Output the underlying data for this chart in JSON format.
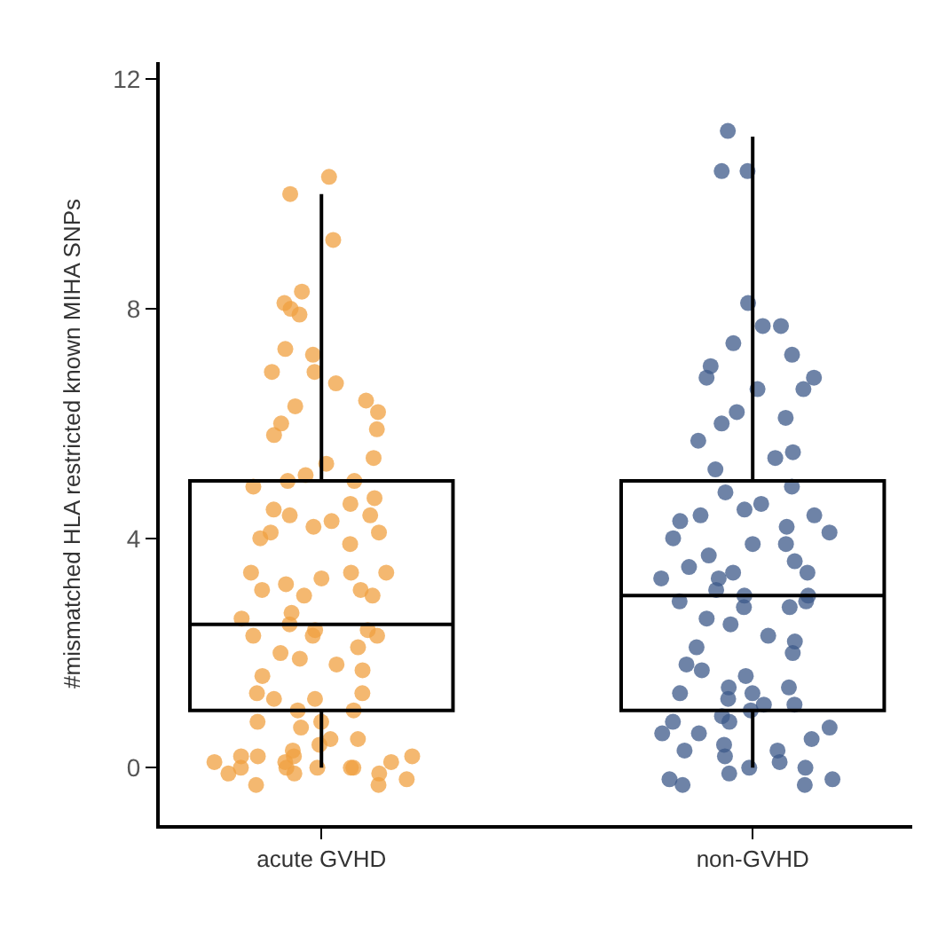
{
  "chart_data": {
    "type": "box",
    "ylabel": "#mismatched HLA restricted known MIHA SNPs",
    "categories": [
      "acute GVHD",
      "non-GVHD"
    ],
    "boxes": [
      {
        "low": 0,
        "q1": 1,
        "median": 2.5,
        "q3": 5,
        "high": 10
      },
      {
        "low": 0,
        "q1": 1,
        "median": 3,
        "q3": 5,
        "high": 11
      }
    ],
    "color": "#000000",
    "ylim": [
      -1,
      12.3
    ],
    "yticks": [
      0,
      4,
      8,
      12
    ],
    "series": [
      {
        "type": "scatter",
        "color": "#f0a040",
        "x": [
          "acute GVHD",
          "acute GVHD",
          "acute GVHD",
          "acute GVHD",
          "acute GVHD",
          "acute GVHD",
          "acute GVHD",
          "acute GVHD",
          "acute GVHD",
          "acute GVHD",
          "acute GVHD",
          "acute GVHD",
          "acute GVHD",
          "acute GVHD",
          "acute GVHD",
          "acute GVHD",
          "acute GVHD",
          "acute GVHD",
          "acute GVHD",
          "acute GVHD",
          "acute GVHD",
          "acute GVHD",
          "acute GVHD",
          "acute GVHD",
          "acute GVHD",
          "acute GVHD",
          "acute GVHD",
          "acute GVHD",
          "acute GVHD",
          "acute GVHD",
          "acute GVHD",
          "acute GVHD",
          "acute GVHD",
          "acute GVHD",
          "acute GVHD",
          "acute GVHD",
          "acute GVHD",
          "acute GVHD",
          "acute GVHD",
          "acute GVHD",
          "acute GVHD",
          "acute GVHD",
          "acute GVHD",
          "acute GVHD",
          "acute GVHD",
          "acute GVHD",
          "acute GVHD",
          "acute GVHD",
          "acute GVHD",
          "acute GVHD",
          "acute GVHD",
          "acute GVHD",
          "acute GVHD",
          "acute GVHD",
          "acute GVHD",
          "acute GVHD",
          "acute GVHD",
          "acute GVHD",
          "acute GVHD",
          "acute GVHD",
          "acute GVHD",
          "acute GVHD",
          "acute GVHD",
          "acute GVHD",
          "acute GVHD",
          "acute GVHD",
          "acute GVHD",
          "acute GVHD",
          "acute GVHD",
          "acute GVHD",
          "acute GVHD",
          "acute GVHD",
          "acute GVHD",
          "acute GVHD",
          "acute GVHD",
          "acute GVHD",
          "acute GVHD",
          "acute GVHD",
          "acute GVHD",
          "acute GVHD",
          "acute GVHD",
          "acute GVHD",
          "acute GVHD",
          "acute GVHD",
          "acute GVHD",
          "acute GVHD",
          "acute GVHD",
          "acute GVHD",
          "acute GVHD"
        ],
        "values": [
          10.3,
          10.0,
          9.2,
          8.3,
          8.1,
          8.0,
          7.9,
          7.3,
          7.2,
          6.9,
          6.9,
          6.7,
          6.4,
          6.3,
          6.2,
          6.0,
          5.9,
          5.8,
          5.4,
          5.3,
          5.1,
          5.0,
          5.0,
          4.9,
          4.7,
          4.6,
          4.5,
          4.4,
          4.4,
          4.3,
          4.2,
          4.1,
          4.1,
          4.0,
          3.9,
          3.4,
          3.4,
          3.4,
          3.3,
          3.2,
          3.1,
          3.1,
          3.0,
          3.0,
          2.7,
          2.6,
          2.5,
          2.4,
          2.4,
          2.3,
          2.3,
          2.3,
          2.1,
          2.0,
          1.9,
          1.8,
          1.7,
          1.6,
          1.3,
          1.3,
          1.2,
          1.2,
          1.0,
          1.0,
          0.8,
          0.8,
          0.7,
          0.5,
          0.5,
          0.4,
          0.3,
          0.2,
          0.2,
          0.2,
          0.2,
          0.1,
          0.1,
          0.1,
          0.0,
          0.0,
          0.0,
          0.0,
          0.0,
          -0.1,
          -0.1,
          -0.1,
          -0.2,
          -0.3,
          -0.3
        ]
      },
      {
        "type": "scatter",
        "color": "#3d5a8a",
        "x": [
          "non-GVHD",
          "non-GVHD",
          "non-GVHD",
          "non-GVHD",
          "non-GVHD",
          "non-GVHD",
          "non-GVHD",
          "non-GVHD",
          "non-GVHD",
          "non-GVHD",
          "non-GVHD",
          "non-GVHD",
          "non-GVHD",
          "non-GVHD",
          "non-GVHD",
          "non-GVHD",
          "non-GVHD",
          "non-GVHD",
          "non-GVHD",
          "non-GVHD",
          "non-GVHD",
          "non-GVHD",
          "non-GVHD",
          "non-GVHD",
          "non-GVHD",
          "non-GVHD",
          "non-GVHD",
          "non-GVHD",
          "non-GVHD",
          "non-GVHD",
          "non-GVHD",
          "non-GVHD",
          "non-GVHD",
          "non-GVHD",
          "non-GVHD",
          "non-GVHD",
          "non-GVHD",
          "non-GVHD",
          "non-GVHD",
          "non-GVHD",
          "non-GVHD",
          "non-GVHD",
          "non-GVHD",
          "non-GVHD",
          "non-GVHD",
          "non-GVHD",
          "non-GVHD",
          "non-GVHD",
          "non-GVHD",
          "non-GVHD",
          "non-GVHD",
          "non-GVHD",
          "non-GVHD",
          "non-GVHD",
          "non-GVHD",
          "non-GVHD",
          "non-GVHD",
          "non-GVHD",
          "non-GVHD",
          "non-GVHD",
          "non-GVHD",
          "non-GVHD",
          "non-GVHD",
          "non-GVHD",
          "non-GVHD",
          "non-GVHD",
          "non-GVHD",
          "non-GVHD",
          "non-GVHD",
          "non-GVHD",
          "non-GVHD",
          "non-GVHD",
          "non-GVHD",
          "non-GVHD",
          "non-GVHD",
          "non-GVHD",
          "non-GVHD",
          "non-GVHD",
          "non-GVHD",
          "non-GVHD",
          "non-GVHD",
          "non-GVHD"
        ],
        "values": [
          11.1,
          10.4,
          10.4,
          8.1,
          7.7,
          7.7,
          7.4,
          7.2,
          7.0,
          6.8,
          6.8,
          6.6,
          6.6,
          6.2,
          6.1,
          6.0,
          5.7,
          5.5,
          5.4,
          5.2,
          4.9,
          4.8,
          4.6,
          4.5,
          4.4,
          4.4,
          4.3,
          4.2,
          4.1,
          4.0,
          3.9,
          3.9,
          3.7,
          3.6,
          3.5,
          3.4,
          3.4,
          3.3,
          3.3,
          3.1,
          3.0,
          3.0,
          2.9,
          2.9,
          2.8,
          2.8,
          2.6,
          2.5,
          2.3,
          2.2,
          2.1,
          2.0,
          1.8,
          1.7,
          1.6,
          1.4,
          1.4,
          1.3,
          1.3,
          1.2,
          1.1,
          1.1,
          1.0,
          0.9,
          0.8,
          0.8,
          0.7,
          0.6,
          0.6,
          0.5,
          0.4,
          0.3,
          0.3,
          0.2,
          0.1,
          0.0,
          0.0,
          -0.1,
          -0.2,
          -0.2,
          -0.3,
          -0.3
        ]
      }
    ]
  }
}
